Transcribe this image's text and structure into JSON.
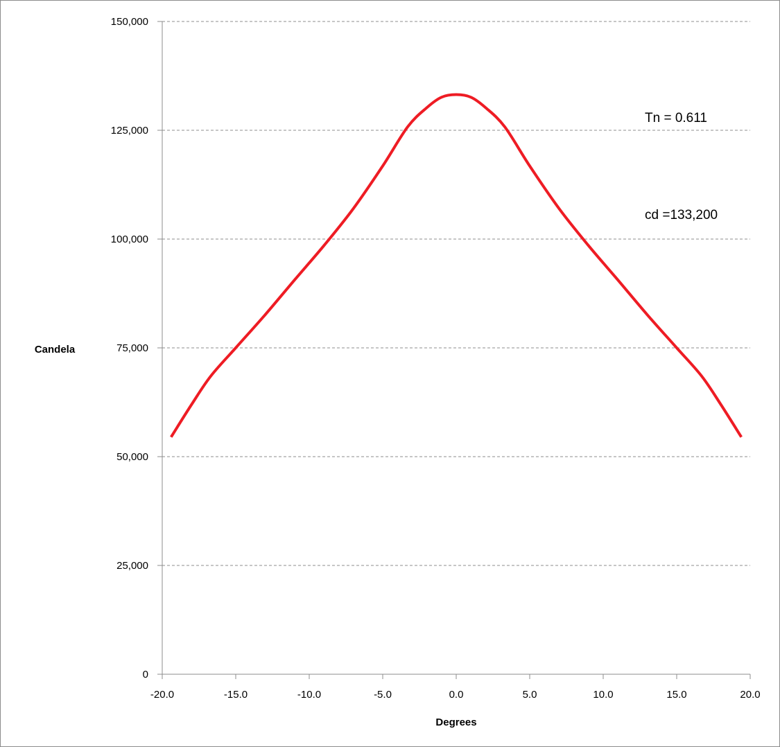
{
  "chart_data": {
    "type": "line",
    "title": "",
    "xlabel": "Degrees",
    "ylabel": "Candela",
    "xlim": [
      -20,
      20
    ],
    "ylim": [
      0,
      150000
    ],
    "x_ticks": [
      "-20.0",
      "-15.0",
      "-10.0",
      "-5.0",
      "0.0",
      "5.0",
      "10.0",
      "15.0",
      "20.0"
    ],
    "x_tick_values": [
      -20,
      -15,
      -10,
      -5,
      0,
      5,
      10,
      15,
      20
    ],
    "y_ticks": [
      "0",
      "25,000",
      "50,000",
      "75,000",
      "100,000",
      "125,000",
      "150,000"
    ],
    "y_tick_values": [
      0,
      25000,
      50000,
      75000,
      100000,
      125000,
      150000
    ],
    "grid": "horizontal dashed",
    "series": [
      {
        "color": "#ee1c24",
        "x": [
          -19.4,
          -18.0,
          -16.7,
          -15.0,
          -13.0,
          -11.0,
          -9.0,
          -7.0,
          -5.0,
          -3.3,
          -2.0,
          -1.0,
          0.0,
          1.0,
          2.0,
          3.3,
          5.0,
          7.0,
          9.0,
          11.0,
          13.0,
          15.0,
          16.7,
          18.0,
          19.4
        ],
        "y": [
          54500,
          62000,
          68500,
          75000,
          82600,
          90600,
          98500,
          107000,
          116800,
          125800,
          130200,
          132600,
          133200,
          132600,
          130200,
          125800,
          116800,
          107000,
          98500,
          90600,
          82600,
          75000,
          68500,
          62000,
          54500
        ]
      }
    ],
    "annotations": [
      "Tn = 0.611",
      "cd =133,200"
    ]
  },
  "colors": {
    "line": "#ee1c24",
    "grid": "#8c8c8c",
    "axis": "#8c8c8c"
  }
}
